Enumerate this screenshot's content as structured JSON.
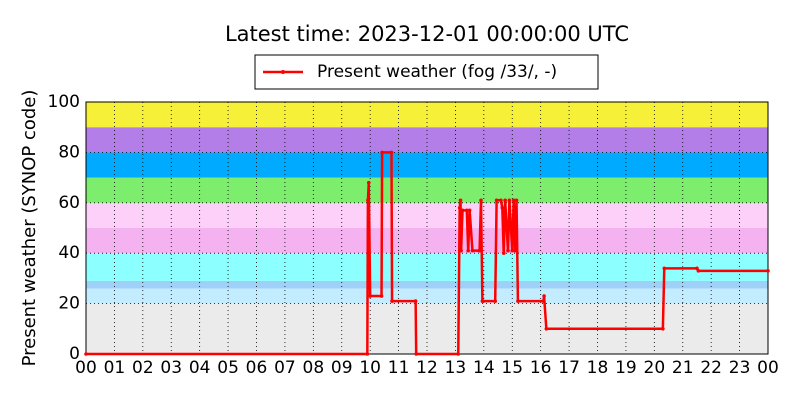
{
  "chart_data": {
    "type": "line",
    "title": "Latest time: 2023-12-01 00:00:00 UTC",
    "ylabel": "Present weather (SYNOP code)",
    "xlim": [
      0,
      24
    ],
    "ylim": [
      0,
      100
    ],
    "yticks": [
      0,
      20,
      40,
      60,
      80,
      100
    ],
    "xticks": [
      {
        "value": 0,
        "label": "00"
      },
      {
        "value": 1,
        "label": "01"
      },
      {
        "value": 2,
        "label": "02"
      },
      {
        "value": 3,
        "label": "03"
      },
      {
        "value": 4,
        "label": "04"
      },
      {
        "value": 5,
        "label": "05"
      },
      {
        "value": 6,
        "label": "06"
      },
      {
        "value": 7,
        "label": "07"
      },
      {
        "value": 8,
        "label": "08"
      },
      {
        "value": 9,
        "label": "09"
      },
      10,
      11,
      12,
      13,
      14,
      15,
      16,
      17,
      18,
      19,
      20,
      21,
      22,
      23,
      {
        "value": 24,
        "label": "00"
      }
    ],
    "grid": true,
    "legend": "upper center",
    "bands": [
      {
        "from": 0,
        "to": 20,
        "color": "#ebebeb"
      },
      {
        "from": 20,
        "to": 26,
        "color": "#c4ecff"
      },
      {
        "from": 26,
        "to": 29,
        "color": "#9fd0f8"
      },
      {
        "from": 29,
        "to": 40,
        "color": "#8cffff"
      },
      {
        "from": 40,
        "to": 50,
        "color": "#f4b2f0"
      },
      {
        "from": 50,
        "to": 60,
        "color": "#fdd0fa"
      },
      {
        "from": 60,
        "to": 70,
        "color": "#7ded6e"
      },
      {
        "from": 70,
        "to": 80,
        "color": "#00aaff"
      },
      {
        "from": 80,
        "to": 90,
        "color": "#b47ee8"
      },
      {
        "from": 90,
        "to": 100,
        "color": "#f7f039"
      }
    ],
    "series": [
      {
        "name": "Present weather (fog /33/, -)",
        "color": "#ff0000",
        "x": [
          0,
          9.9,
          9.92,
          9.95,
          10.0,
          10.4,
          10.42,
          10.75,
          10.77,
          11.6,
          11.62,
          13.1,
          13.15,
          13.18,
          13.2,
          13.25,
          13.4,
          13.45,
          13.5,
          13.6,
          13.85,
          13.9,
          13.95,
          14.4,
          14.45,
          14.6,
          14.65,
          14.7,
          14.75,
          14.85,
          14.9,
          15.0,
          15.05,
          15.1,
          15.15,
          15.2,
          16.1,
          16.12,
          16.2,
          20.3,
          20.35,
          21.5,
          21.55,
          24
        ],
        "values": [
          0,
          0,
          61,
          68,
          23,
          23,
          80,
          80,
          21,
          21,
          0,
          0,
          58,
          61,
          41,
          57,
          57,
          41,
          57,
          41,
          41,
          61,
          21,
          21,
          61,
          61,
          58,
          40,
          61,
          41,
          61,
          41,
          61,
          41,
          61,
          21,
          21,
          23,
          10,
          10,
          34,
          34,
          33,
          33
        ]
      }
    ]
  }
}
